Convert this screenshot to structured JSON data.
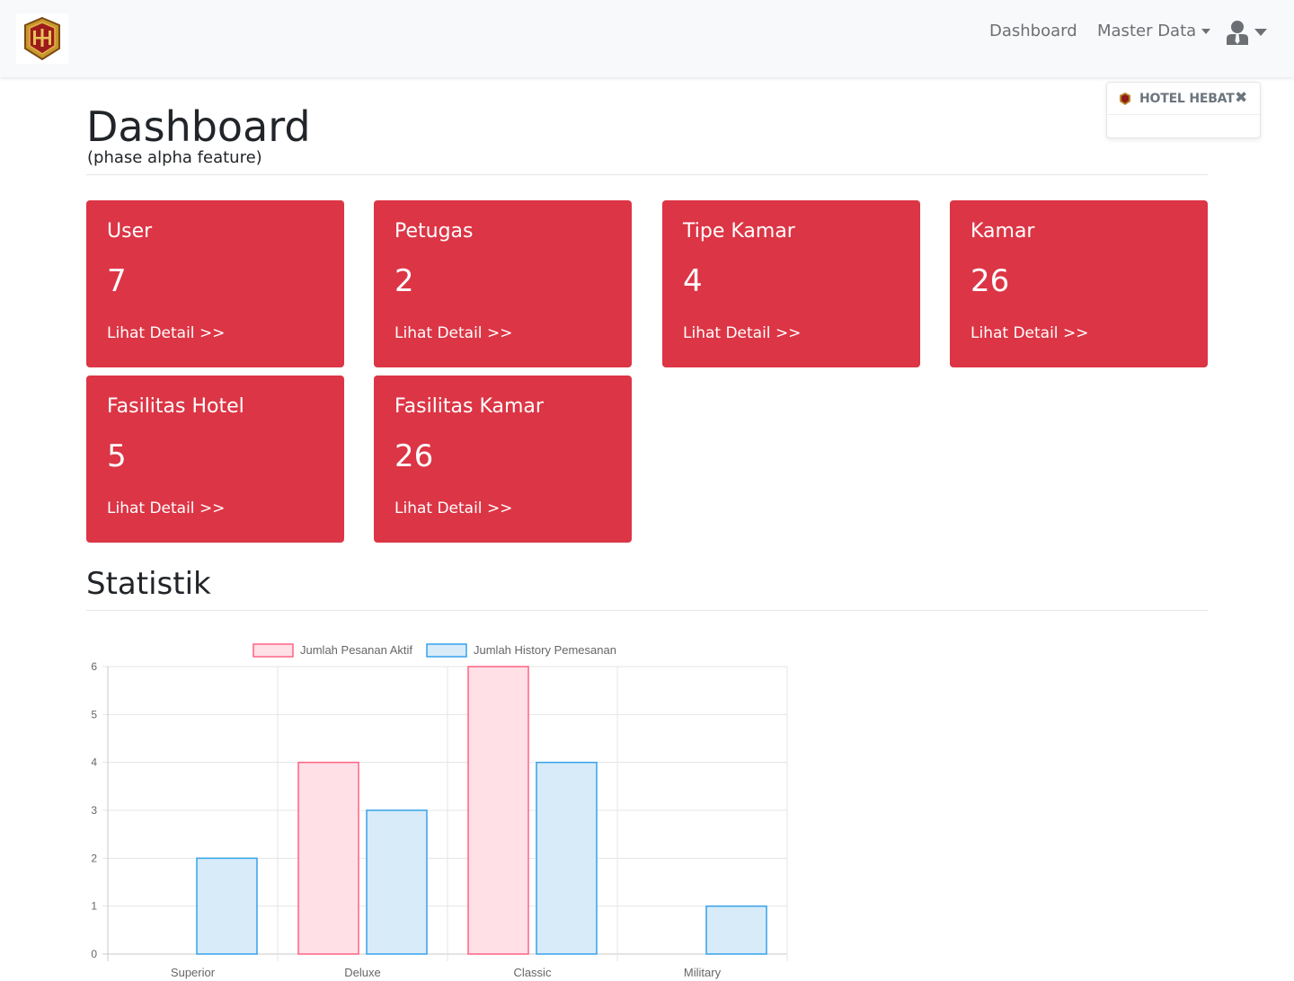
{
  "navbar": {
    "dashboard_label": "Dashboard",
    "master_data_label": "Master Data"
  },
  "toast": {
    "title": "HOTEL HEBAT",
    "close": "✖"
  },
  "page": {
    "title": "Dashboard",
    "subtitle": "(phase alpha feature)",
    "stats_title": "Statistik"
  },
  "cards": [
    {
      "title": "User",
      "value": "7",
      "link": "Lihat Detail >>"
    },
    {
      "title": "Petugas",
      "value": "2",
      "link": "Lihat Detail >>"
    },
    {
      "title": "Tipe Kamar",
      "value": "4",
      "link": "Lihat Detail >>"
    },
    {
      "title": "Kamar",
      "value": "26",
      "link": "Lihat Detail >>"
    },
    {
      "title": "Fasilitas Hotel",
      "value": "5",
      "link": "Lihat Detail >>"
    },
    {
      "title": "Fasilitas Kamar",
      "value": "26",
      "link": "Lihat Detail >>"
    }
  ],
  "colors": {
    "card_bg": "#dc3545",
    "series1_fill": "#ffe0e6",
    "series1_border": "#ff6384",
    "series2_fill": "#d7ebf8",
    "series2_border": "#36a2eb"
  },
  "chart_data": {
    "type": "bar",
    "categories": [
      "Superior",
      "Deluxe",
      "Classic",
      "Military"
    ],
    "series": [
      {
        "name": "Jumlah Pesanan Aktif",
        "values": [
          0,
          4,
          6,
          0
        ]
      },
      {
        "name": "Jumlah History Pemesanan",
        "values": [
          2,
          3,
          4,
          1
        ]
      }
    ],
    "ylim": [
      0,
      6
    ],
    "yticks": [
      0,
      1,
      2,
      3,
      4,
      5,
      6
    ],
    "grid": true,
    "legend": "top"
  }
}
